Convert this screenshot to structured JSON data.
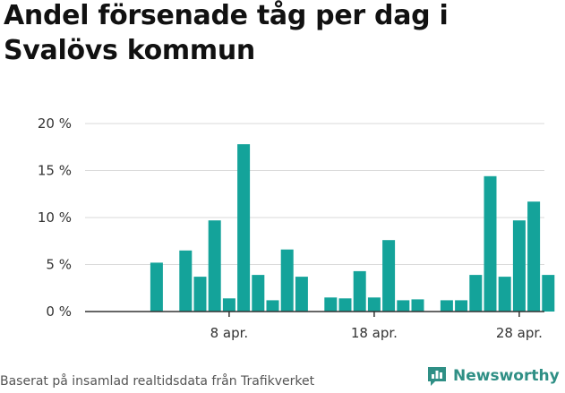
{
  "title": "Andel försenade tåg per dag i Svalövs kommun",
  "source": "Baserat på insamlad realtidsdata från Trafikverket",
  "brand": {
    "name": "Newsworthy",
    "icon": "newsworthy-chart-bubble-icon",
    "color": "#2f8f85"
  },
  "colors": {
    "bar": "#14a39a",
    "grid": "#d9d9d9",
    "axis": "#333333"
  },
  "chart_data": {
    "type": "bar",
    "title": "Andel försenade tåg per dag i Svalövs kommun",
    "xlabel": "",
    "ylabel": "",
    "x_start": "2024-04-01",
    "x_end": "2024-04-30",
    "x_ticks": [
      {
        "date": "2024-04-08",
        "label": "8 apr."
      },
      {
        "date": "2024-04-18",
        "label": "18 apr."
      },
      {
        "date": "2024-04-28",
        "label": "28 apr."
      }
    ],
    "y_ticks": [
      {
        "value": 0,
        "label": "0 %"
      },
      {
        "value": 5,
        "label": "5 %"
      },
      {
        "value": 10,
        "label": "10 %"
      },
      {
        "value": 15,
        "label": "15 %"
      },
      {
        "value": 20,
        "label": "20 %"
      }
    ],
    "ylim": [
      0,
      20
    ],
    "grid": true,
    "legend": false,
    "points": [
      {
        "date": "2024-04-03",
        "value": 5.2
      },
      {
        "date": "2024-04-05",
        "value": 6.5
      },
      {
        "date": "2024-04-06",
        "value": 3.7
      },
      {
        "date": "2024-04-07",
        "value": 9.7
      },
      {
        "date": "2024-04-08",
        "value": 1.4
      },
      {
        "date": "2024-04-09",
        "value": 17.8
      },
      {
        "date": "2024-04-10",
        "value": 3.9
      },
      {
        "date": "2024-04-11",
        "value": 1.2
      },
      {
        "date": "2024-04-12",
        "value": 6.6
      },
      {
        "date": "2024-04-13",
        "value": 3.7
      },
      {
        "date": "2024-04-15",
        "value": 1.5
      },
      {
        "date": "2024-04-16",
        "value": 1.4
      },
      {
        "date": "2024-04-17",
        "value": 4.3
      },
      {
        "date": "2024-04-18",
        "value": 1.5
      },
      {
        "date": "2024-04-19",
        "value": 7.6
      },
      {
        "date": "2024-04-20",
        "value": 1.2
      },
      {
        "date": "2024-04-21",
        "value": 1.3
      },
      {
        "date": "2024-04-23",
        "value": 1.2
      },
      {
        "date": "2024-04-24",
        "value": 1.2
      },
      {
        "date": "2024-04-25",
        "value": 3.9
      },
      {
        "date": "2024-04-26",
        "value": 14.4
      },
      {
        "date": "2024-04-27",
        "value": 3.7
      },
      {
        "date": "2024-04-28",
        "value": 9.7
      },
      {
        "date": "2024-04-29",
        "value": 11.7
      },
      {
        "date": "2024-04-30",
        "value": 3.9
      }
    ]
  }
}
